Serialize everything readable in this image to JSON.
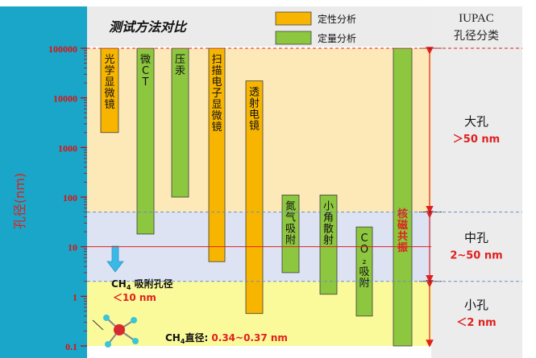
{
  "chart_data": {
    "type": "bar",
    "title": "测试方法对比",
    "ylabel": "孔径(nm)",
    "yscale": "log",
    "ylim": [
      0.1,
      100000
    ],
    "yticks": [
      {
        "value": 0.1,
        "label": "0.1"
      },
      {
        "value": 1,
        "label": "1"
      },
      {
        "value": 10,
        "label": "10"
      },
      {
        "value": 100,
        "label": "100"
      },
      {
        "value": 1000,
        "label": "1000"
      },
      {
        "value": 10000,
        "label": "10000"
      },
      {
        "value": 100000,
        "label": "100000"
      }
    ],
    "legend": [
      {
        "name": "定性分析",
        "color": "#f7b500"
      },
      {
        "name": "定量分析",
        "color": "#8dc63f"
      }
    ],
    "series": [
      {
        "name": "光学显微镜",
        "type": "定性分析",
        "low": 2000,
        "high": 100000
      },
      {
        "name": "微CT",
        "type": "定量分析",
        "low": 18,
        "high": 100000
      },
      {
        "name": "压汞",
        "type": "定量分析",
        "low": 100,
        "high": 100000
      },
      {
        "name": "扫描电子显微镜",
        "type": "定性分析",
        "low": 5,
        "high": 100000
      },
      {
        "name": "透射电镜",
        "type": "定性分析",
        "low": 0.45,
        "high": 22000
      },
      {
        "name": "氮气吸附",
        "type": "定量分析",
        "low": 3,
        "high": 110
      },
      {
        "name": "小角散射",
        "type": "定量分析",
        "low": 1.1,
        "high": 110
      },
      {
        "name": "CO₂吸附",
        "type": "定量分析",
        "low": 0.4,
        "high": 25
      },
      {
        "name": "核磁共振",
        "type": "定量分析",
        "low": 0.1,
        "high": 100000
      }
    ],
    "iupac": {
      "header": [
        "IUPAC",
        "孔径分类"
      ],
      "classes": [
        {
          "name": "大孔",
          "range": "＞50 nm",
          "low": 50,
          "high": 100000
        },
        {
          "name": "中孔",
          "range": "2~50 nm",
          "low": 2,
          "high": 50
        },
        {
          "name": "小孔",
          "range": "＜2 nm",
          "low": 0.1,
          "high": 2
        }
      ]
    },
    "annotations": {
      "ch4_pore": "＜10 nm",
      "ch4_diameter_value": "0.34~0.37 nm"
    },
    "colors": {
      "macro_band": "#fde9b8",
      "meso_band": "#dde3f2",
      "micro_band": "#fafa9a",
      "axis_panel": "#1aa6c8",
      "header": "#ebebeb",
      "iupac_panel": "#ececec",
      "red": "#e02020",
      "arrow": "#3cb8e6"
    }
  }
}
